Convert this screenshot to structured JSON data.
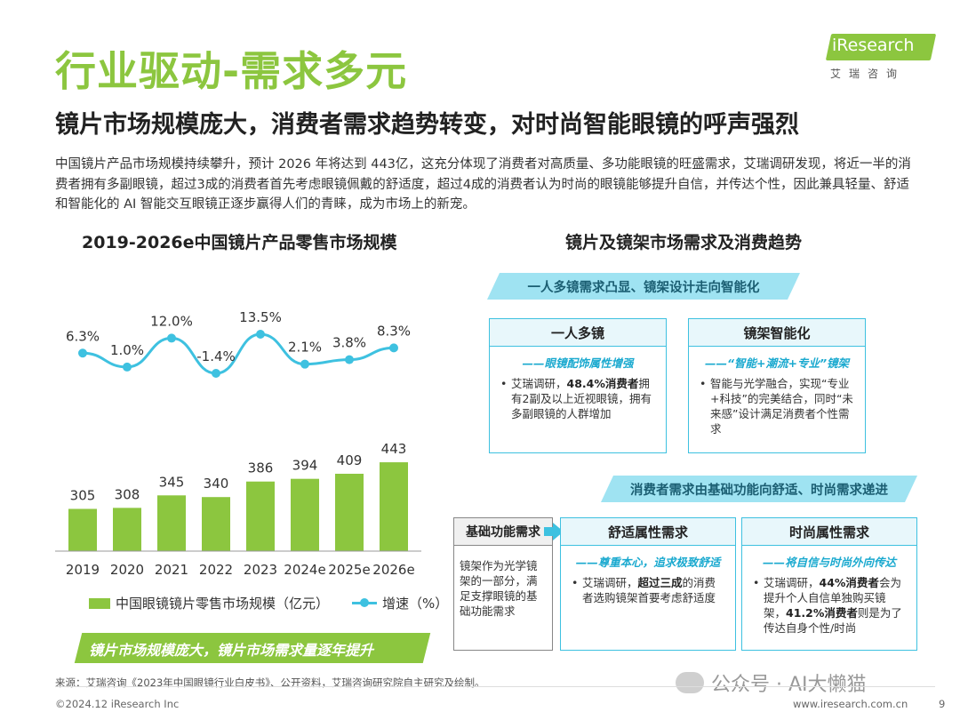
{
  "header": {
    "title": "行业驱动-需求多元",
    "subtitle": "镜片市场规模庞大，消费者需求趋势转变，对时尚智能眼镜的呼声强烈",
    "logo_text": "iResearch",
    "logo_sub": "艾瑞咨询"
  },
  "intro": "中国镜片产品市场规模持续攀升，预计 2026 年将达到 443亿，这充分体现了消费者对高质量、多功能眼镜的旺盛需求，艾瑞调研发现，将近一半的消费者拥有多副眼镜，超过3成的消费者首先考虑眼镜佩戴的舒适度，超过4成的消费者认为时尚的眼镜能够提升自信，并传达个性，因此兼具轻量、舒适和智能化的 AI 智能交互眼镜正逐步赢得人们的青睐，成为市场上的新宠。",
  "left_heading": "2019-2026e中国镜片产品零售市场规模",
  "right_heading": "镜片及镜架市场需求及消费趋势",
  "chart_data": {
    "type": "bar",
    "categories": [
      "2019",
      "2020",
      "2021",
      "2022",
      "2023",
      "2024e",
      "2025e",
      "2026e"
    ],
    "series": [
      {
        "name": "中国眼镜镜片零售市场规模（亿元）",
        "type": "bar",
        "values": [
          305,
          308,
          345,
          340,
          386,
          394,
          409,
          443
        ],
        "labels": [
          "305",
          "308",
          "345",
          "340",
          "386",
          "394",
          "409",
          "443"
        ],
        "color": "#8cc63f"
      },
      {
        "name": "增速（%）",
        "type": "line",
        "values": [
          6.3,
          1.0,
          12.0,
          -1.4,
          13.5,
          2.1,
          3.8,
          8.3
        ],
        "labels": [
          "6.3%",
          "1.0%",
          "12.0%",
          "-1.4%",
          "13.5%",
          "2.1%",
          "3.8%",
          "8.3%"
        ],
        "color": "#3ec1e0"
      }
    ],
    "legend_position": "bottom",
    "grid": false
  },
  "legend": {
    "bar": "中国眼镜镜片零售市场规模（亿元）",
    "line": "增速（%）"
  },
  "conclusion_ribbon": "镜片市场规模庞大，镜片市场需求量逐年提升",
  "trend1": {
    "banner": "一人多镜需求凸显、镜架设计走向智能化",
    "box1": {
      "title": "一人多镜",
      "tag": "——眼镜配饰属性增强",
      "text_a": "艾瑞调研，",
      "bold": "48.4%消费者",
      "text_b": "拥有2副及以上近视眼镜，拥有多副眼镜的人群增加"
    },
    "box2": {
      "title": "镜架智能化",
      "tag": "——“智能+潮流+专业”镜架",
      "text": "智能与光学融合，实现“专业+科技”的完美结合，同时“未来感”设计满足消费者个性需求"
    }
  },
  "trend2": {
    "banner": "消费者需求由基础功能向舒适、时尚需求递进",
    "basic": {
      "title": "基础功能需求",
      "text": "镜架作为光学镜架的一部分，满足支撑眼镜的基础功能需求"
    },
    "comfort": {
      "title": "舒适属性需求",
      "tag": "——尊重本心，追求极致舒适",
      "text_a": "艾瑞调研，",
      "bold": "超过三成",
      "text_b": "的消费者选购镜架首要考虑舒适度"
    },
    "fashion": {
      "title": "时尚属性需求",
      "tag": "——将自信与时尚外向传达",
      "text_a": "艾瑞调研，",
      "bold1": "44%消费者",
      "text_b": "会为提升个人自信单独购买镜架，",
      "bold2": "41.2%消费者",
      "text_c": "则是为了传达自身个性/时尚"
    }
  },
  "footer": {
    "source": "来源：艾瑞咨询《2023年中国眼镜行业白皮书》、公开资料，艾瑞咨询研究院自主研究及绘制。",
    "copyright": "©2024.12 iResearch Inc",
    "url": "www.iresearch.com.cn",
    "page": "9",
    "watermark": "公众号 · AI大懒猫"
  },
  "colors": {
    "brand_green": "#8cc63f",
    "accent_cyan": "#3ec1e0",
    "banner_cyan": "#9fe3f2"
  }
}
